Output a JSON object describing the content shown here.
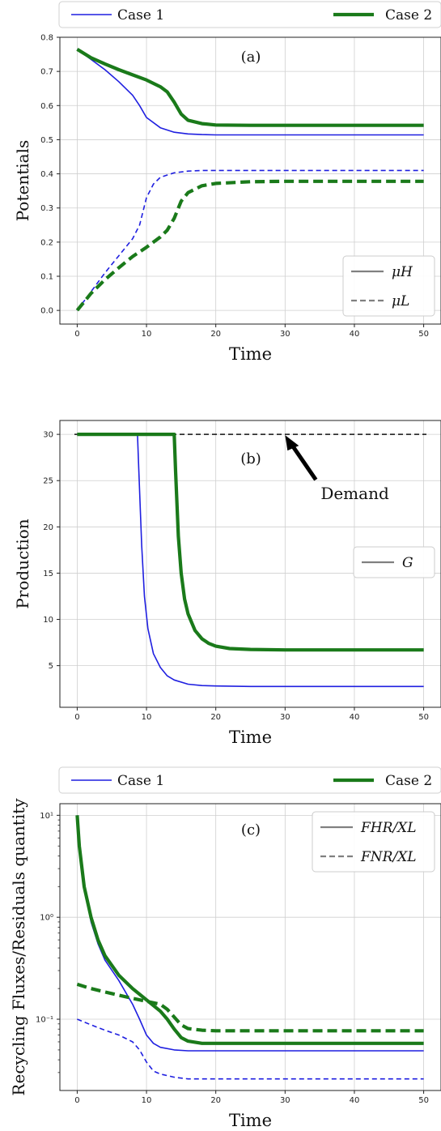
{
  "legend_cases": [
    {
      "label": "Case 1",
      "color": "#1f1fe0"
    },
    {
      "label": "Case 2",
      "color": "#1a7a1a"
    }
  ],
  "chart_data": [
    {
      "type": "line",
      "annotation": "(a)",
      "xlabel": "Time",
      "ylabel": "Potentials",
      "xlim": [
        -2.5,
        52.5
      ],
      "ylim": [
        -0.04,
        0.8
      ],
      "xticks": [
        0,
        10,
        20,
        30,
        40,
        50
      ],
      "yticks": [
        0.0,
        0.1,
        0.2,
        0.3,
        0.4,
        0.5,
        0.6,
        0.7,
        0.8
      ],
      "ytick_labels": [
        "0.0",
        "0.1",
        "0.2",
        "0.3",
        "0.4",
        "0.5",
        "0.6",
        "0.7",
        "0.8"
      ],
      "grid": true,
      "style_legend": {
        "placement": "lower-right",
        "entries": [
          {
            "label": "μH",
            "dash": "solid"
          },
          {
            "label": "μL",
            "dash": "dashed"
          }
        ]
      },
      "series": [
        {
          "case": "Case 1",
          "dash": "solid",
          "x": [
            0,
            2,
            4,
            6,
            8,
            9,
            10,
            12,
            14,
            16,
            18,
            20,
            25,
            30,
            40,
            50
          ],
          "y": [
            0.765,
            0.735,
            0.705,
            0.67,
            0.63,
            0.6,
            0.565,
            0.535,
            0.522,
            0.517,
            0.515,
            0.514,
            0.514,
            0.514,
            0.514,
            0.514
          ]
        },
        {
          "case": "Case 1",
          "dash": "dashed",
          "x": [
            0,
            2,
            4,
            6,
            8,
            9,
            10,
            11,
            12,
            14,
            16,
            18,
            20,
            25,
            30,
            40,
            50
          ],
          "y": [
            0.0,
            0.055,
            0.11,
            0.16,
            0.21,
            0.25,
            0.33,
            0.37,
            0.39,
            0.403,
            0.408,
            0.41,
            0.41,
            0.41,
            0.41,
            0.41,
            0.41
          ]
        },
        {
          "case": "Case 2",
          "dash": "solid",
          "x": [
            0,
            2,
            4,
            6,
            8,
            10,
            12,
            13,
            14,
            15,
            16,
            18,
            20,
            25,
            30,
            40,
            50
          ],
          "y": [
            0.765,
            0.74,
            0.722,
            0.705,
            0.69,
            0.675,
            0.655,
            0.64,
            0.61,
            0.575,
            0.557,
            0.547,
            0.543,
            0.542,
            0.542,
            0.542,
            0.542
          ]
        },
        {
          "case": "Case 2",
          "dash": "dashed",
          "x": [
            0,
            2,
            4,
            6,
            8,
            10,
            12,
            13,
            14,
            15,
            16,
            18,
            20,
            25,
            30,
            40,
            50
          ],
          "y": [
            0.0,
            0.05,
            0.09,
            0.125,
            0.158,
            0.185,
            0.215,
            0.235,
            0.27,
            0.32,
            0.345,
            0.365,
            0.372,
            0.377,
            0.378,
            0.378,
            0.378
          ]
        }
      ]
    },
    {
      "type": "line",
      "annotation": "(b)",
      "xlabel": "Time",
      "ylabel": "Production",
      "xlim": [
        -2.5,
        52.5
      ],
      "ylim": [
        0.5,
        31.5
      ],
      "xticks": [
        0,
        10,
        20,
        30,
        40,
        50
      ],
      "yticks": [
        5,
        10,
        15,
        20,
        25,
        30
      ],
      "ytick_labels": [
        "5",
        "10",
        "15",
        "20",
        "25",
        "30"
      ],
      "grid": true,
      "style_legend": {
        "placement": "right",
        "entries": [
          {
            "label": "G",
            "dash": "solid"
          }
        ]
      },
      "reference_line": {
        "label": "Demand",
        "y": 30,
        "arrow_to_x": 30
      },
      "series": [
        {
          "case": "Case 1",
          "dash": "solid",
          "x": [
            0,
            8.7,
            8.9,
            9.3,
            9.7,
            10.2,
            11,
            12,
            13,
            14,
            16,
            18,
            20,
            25,
            30,
            40,
            50
          ],
          "y": [
            30,
            30,
            26,
            18,
            12.5,
            9,
            6.3,
            4.8,
            3.9,
            3.45,
            3.0,
            2.85,
            2.8,
            2.75,
            2.75,
            2.75,
            2.75
          ]
        },
        {
          "case": "Case 2",
          "dash": "solid",
          "x": [
            0,
            14,
            14.2,
            14.6,
            15,
            15.5,
            16,
            17,
            18,
            19,
            20,
            22,
            25,
            30,
            40,
            50
          ],
          "y": [
            30,
            30,
            26,
            19,
            15,
            12.2,
            10.6,
            8.8,
            7.9,
            7.4,
            7.1,
            6.85,
            6.75,
            6.7,
            6.7,
            6.7
          ]
        }
      ]
    },
    {
      "type": "line",
      "annotation": "(c)",
      "xlabel": "Time",
      "ylabel": "Recycling Fluxes/Residuals quantity",
      "xlim": [
        -2.5,
        52.5
      ],
      "ylim": [
        0.02,
        13
      ],
      "yscale": "log",
      "xticks": [
        0,
        10,
        20,
        30,
        40,
        50
      ],
      "yticks": [
        0.1,
        1,
        10
      ],
      "ytick_labels": [
        "10⁻¹",
        "10⁰",
        "10¹"
      ],
      "grid": true,
      "style_legend": {
        "placement": "top-right",
        "entries": [
          {
            "label": "FHR/XL",
            "dash": "solid"
          },
          {
            "label": "FNR/XL",
            "dash": "dashed"
          }
        ]
      },
      "series": [
        {
          "case": "Case 1",
          "dash": "solid",
          "x": [
            0,
            0.3,
            1,
            2,
            3,
            4,
            6,
            8,
            9,
            10,
            11,
            12,
            14,
            16,
            20,
            25,
            30,
            40,
            50
          ],
          "y": [
            10,
            5,
            2,
            0.9,
            0.55,
            0.38,
            0.24,
            0.14,
            0.1,
            0.07,
            0.058,
            0.053,
            0.05,
            0.049,
            0.049,
            0.049,
            0.049,
            0.049,
            0.049
          ]
        },
        {
          "case": "Case 1",
          "dash": "dashed",
          "x": [
            0,
            2,
            4,
            6,
            8,
            9,
            10,
            11,
            12,
            14,
            16,
            20,
            25,
            30,
            40,
            50
          ],
          "y": [
            0.1,
            0.088,
            0.078,
            0.07,
            0.06,
            0.05,
            0.038,
            0.031,
            0.029,
            0.027,
            0.026,
            0.026,
            0.026,
            0.026,
            0.026,
            0.026
          ]
        },
        {
          "case": "Case 2",
          "dash": "solid",
          "x": [
            0,
            0.3,
            1,
            2,
            3,
            4,
            6,
            8,
            10,
            12,
            13,
            14,
            15,
            16,
            18,
            20,
            25,
            30,
            40,
            50
          ],
          "y": [
            10,
            5,
            2,
            1.0,
            0.6,
            0.42,
            0.27,
            0.2,
            0.155,
            0.12,
            0.1,
            0.08,
            0.066,
            0.061,
            0.058,
            0.058,
            0.058,
            0.058,
            0.058,
            0.058
          ]
        },
        {
          "case": "Case 2",
          "dash": "dashed",
          "x": [
            0,
            2,
            4,
            6,
            8,
            10,
            12,
            13,
            14,
            15,
            16,
            18,
            20,
            25,
            30,
            40,
            50
          ],
          "y": [
            0.22,
            0.2,
            0.185,
            0.172,
            0.16,
            0.15,
            0.14,
            0.125,
            0.105,
            0.088,
            0.081,
            0.078,
            0.077,
            0.077,
            0.077,
            0.077,
            0.077
          ]
        }
      ]
    }
  ]
}
